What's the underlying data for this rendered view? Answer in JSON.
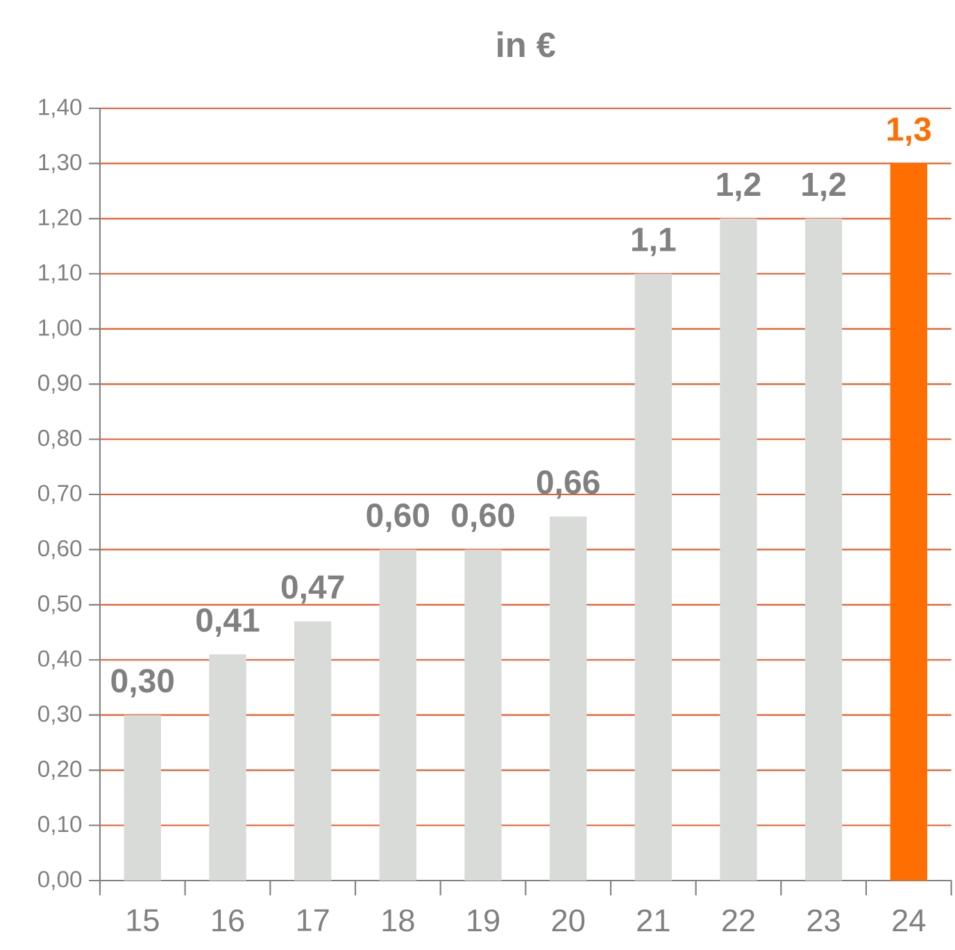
{
  "chart_data": {
    "type": "bar",
    "title": "in €",
    "categories": [
      "15",
      "16",
      "17",
      "18",
      "19",
      "20",
      "21",
      "22",
      "23",
      "24"
    ],
    "values": [
      0.3,
      0.41,
      0.47,
      0.6,
      0.6,
      0.66,
      1.1,
      1.2,
      1.2,
      1.3
    ],
    "value_labels": [
      "0,30",
      "0,41",
      "0,47",
      "0,60",
      "0,60",
      "0,66",
      "1,1",
      "1,2",
      "1,2",
      "1,3"
    ],
    "colors": [
      "#d9dbd8",
      "#d9dbd8",
      "#d9dbd8",
      "#d9dbd8",
      "#d9dbd8",
      "#d9dbd8",
      "#d9dbd8",
      "#d9dbd8",
      "#d9dbd8",
      "#ff6e00"
    ],
    "ylim": [
      0,
      1.4
    ],
    "yticks": [
      {
        "value": 0,
        "label": "0,00"
      },
      {
        "value": 0.1,
        "label": "0,10"
      },
      {
        "value": 0.2,
        "label": "0,20"
      },
      {
        "value": 0.3,
        "label": "0,30"
      },
      {
        "value": 0.4,
        "label": "0,40"
      },
      {
        "value": 0.5,
        "label": "0,50"
      },
      {
        "value": 0.6,
        "label": "0,60"
      },
      {
        "value": 0.7,
        "label": "0,70"
      },
      {
        "value": 0.8,
        "label": "0,80"
      },
      {
        "value": 0.9,
        "label": "0,90"
      },
      {
        "value": 1.0,
        "label": "1,00"
      },
      {
        "value": 1.1,
        "label": "1,10"
      },
      {
        "value": 1.2,
        "label": "1,20"
      },
      {
        "value": 1.3,
        "label": "1,30"
      },
      {
        "value": 1.4,
        "label": "1,40"
      }
    ],
    "grid": "y"
  }
}
